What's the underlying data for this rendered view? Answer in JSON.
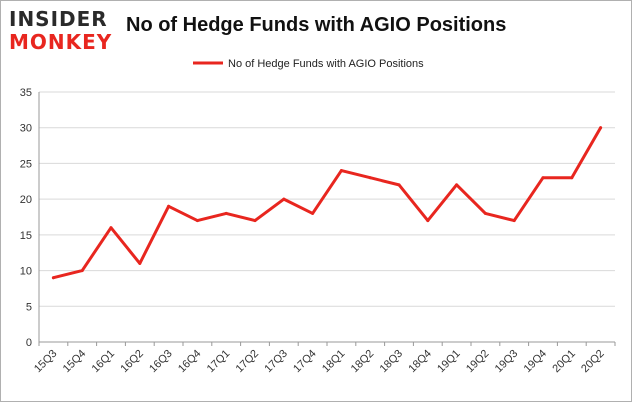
{
  "header": {
    "logo_line1": "INSIDER",
    "logo_line2": "MONKEY",
    "title": "No of Hedge Funds with AGIO Positions"
  },
  "colors": {
    "series": "#e8261f",
    "grid": "#d9d9d9",
    "axis": "#999999"
  },
  "chart_data": {
    "type": "line",
    "title": "No of Hedge Funds with AGIO Positions",
    "xlabel": "",
    "ylabel": "",
    "ylim": [
      0,
      35
    ],
    "yticks": [
      0,
      5,
      10,
      15,
      20,
      25,
      30,
      35
    ],
    "grid": true,
    "legend_position": "top-center",
    "categories": [
      "15Q3",
      "15Q4",
      "16Q1",
      "16Q2",
      "16Q3",
      "16Q4",
      "17Q1",
      "17Q2",
      "17Q3",
      "17Q4",
      "18Q1",
      "18Q2",
      "18Q3",
      "18Q4",
      "19Q1",
      "19Q2",
      "19Q3",
      "19Q4",
      "20Q1",
      "20Q2"
    ],
    "series": [
      {
        "name": "No of Hedge Funds with AGIO Positions",
        "values": [
          9,
          10,
          16,
          11,
          19,
          17,
          18,
          17,
          20,
          18,
          24,
          23,
          22,
          17,
          22,
          18,
          17,
          23,
          23,
          30
        ]
      }
    ]
  }
}
